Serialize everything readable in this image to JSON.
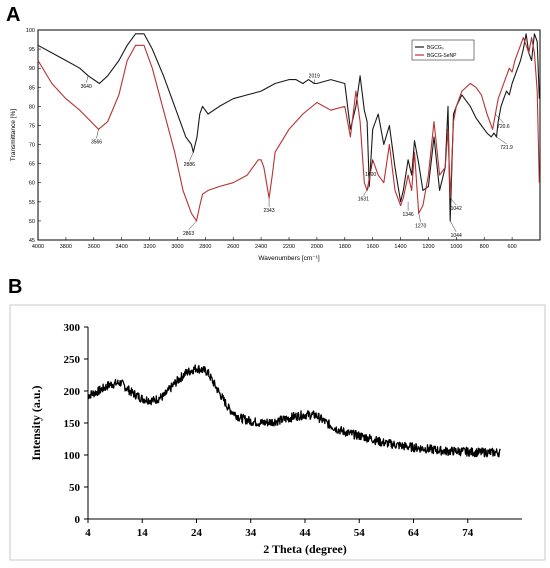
{
  "panels": {
    "a": "A",
    "b": "B"
  },
  "chart_data": [
    {
      "type": "line",
      "panel": "A",
      "title": "",
      "xlabel": "Wavenumbers [cm⁻¹]",
      "ylabel": "Transmittance [%]",
      "xlim": [
        4000,
        400
      ],
      "ylim": [
        45,
        100
      ],
      "x_ticks": [
        4000,
        3800,
        3600,
        3400,
        3200,
        3000,
        2800,
        2600,
        2400,
        2200,
        2000,
        1800,
        1600,
        1400,
        1200,
        1000,
        800,
        600
      ],
      "y_ticks": [
        45,
        50,
        55,
        60,
        65,
        70,
        75,
        80,
        85,
        90,
        95,
        100
      ],
      "legend_position": "top-right",
      "series": [
        {
          "name": "BGCG₀",
          "color": "#1a1a1a",
          "x": [
            4000,
            3900,
            3800,
            3700,
            3640,
            3560,
            3500,
            3420,
            3360,
            3300,
            3240,
            3180,
            3100,
            3020,
            2980,
            2940,
            2900,
            2886,
            2860,
            2840,
            2820,
            2780,
            2700,
            2600,
            2500,
            2400,
            2300,
            2200,
            2150,
            2100,
            2060,
            2019,
            2000,
            1900,
            1800,
            1760,
            1720,
            1690,
            1660,
            1640,
            1624,
            1600,
            1560,
            1520,
            1480,
            1440,
            1400,
            1380,
            1346,
            1320,
            1300,
            1270,
            1240,
            1200,
            1160,
            1120,
            1080,
            1060,
            1044,
            1020,
            1000,
            960,
            900,
            860,
            820,
            780,
            750,
            730,
            712,
            700,
            680,
            660,
            640,
            620,
            600,
            580,
            560,
            540,
            520,
            500,
            480,
            460,
            440,
            420,
            405
          ],
          "y": [
            96,
            94,
            92,
            90,
            88,
            86,
            88,
            92,
            96,
            99,
            99,
            95,
            88,
            80,
            76,
            72,
            70,
            68,
            72,
            78,
            80,
            78,
            80,
            82,
            83,
            84,
            86,
            87,
            87,
            86,
            87,
            86,
            86,
            87,
            86,
            74,
            80,
            88,
            79,
            76,
            59,
            74,
            78,
            70,
            75,
            64,
            55,
            58,
            66,
            62,
            71,
            65,
            58,
            59,
            72,
            58,
            64,
            80,
            50,
            78,
            80,
            83,
            80,
            77,
            75,
            73,
            72,
            73,
            72,
            76,
            80,
            82,
            84,
            83,
            86,
            88,
            90,
            92,
            95,
            99,
            94,
            92,
            99,
            97,
            82
          ]
        },
        {
          "name": "BGCG-SeNP",
          "color": "#b83232",
          "x": [
            4000,
            3900,
            3800,
            3700,
            3620,
            3566,
            3500,
            3420,
            3360,
            3300,
            3240,
            3180,
            3100,
            3020,
            2960,
            2900,
            2863,
            2840,
            2820,
            2780,
            2700,
            2600,
            2500,
            2420,
            2400,
            2380,
            2343,
            2320,
            2300,
            2200,
            2100,
            2000,
            1900,
            1800,
            1760,
            1720,
            1690,
            1660,
            1640,
            1600,
            1560,
            1520,
            1480,
            1440,
            1400,
            1380,
            1346,
            1320,
            1300,
            1270,
            1240,
            1200,
            1160,
            1120,
            1080,
            1060,
            1044,
            1020,
            1000,
            960,
            900,
            860,
            820,
            780,
            740,
            720,
            700,
            680,
            660,
            640,
            620,
            600,
            580,
            560,
            540,
            520,
            500,
            480,
            460,
            440,
            420,
            405
          ],
          "y": [
            92,
            86,
            82,
            79,
            76,
            74,
            76,
            83,
            92,
            96,
            96,
            90,
            79,
            68,
            58,
            52,
            50,
            54,
            57,
            58,
            59,
            60,
            62,
            66,
            66,
            64,
            56,
            62,
            68,
            74,
            78,
            81,
            79,
            80,
            72,
            84,
            76,
            60,
            58,
            66,
            62,
            60,
            70,
            58,
            54,
            56,
            62,
            58,
            68,
            52,
            54,
            62,
            76,
            62,
            64,
            74,
            56,
            76,
            80,
            84,
            86,
            85,
            83,
            78,
            74,
            78,
            82,
            84,
            86,
            88,
            90,
            89,
            92,
            94,
            96,
            98,
            96,
            94,
            98,
            94,
            84,
            60
          ]
        }
      ],
      "annotations": [
        {
          "label": "3640",
          "x": 3640,
          "y": 88
        },
        {
          "label": "3566",
          "x": 3566,
          "y": 74
        },
        {
          "label": "2886",
          "x": 2886,
          "y": 68
        },
        {
          "label": "2863",
          "x": 2863,
          "y": 50
        },
        {
          "label": "2343",
          "x": 2343,
          "y": 56
        },
        {
          "label": "2019",
          "x": 2019,
          "y": 86
        },
        {
          "label": "1631",
          "x": 1624,
          "y": 59
        },
        {
          "label": "1600",
          "x": 1600,
          "y": 66
        },
        {
          "label": "1346",
          "x": 1346,
          "y": 55
        },
        {
          "label": "1270",
          "x": 1270,
          "y": 52
        },
        {
          "label": "1042",
          "x": 1044,
          "y": 56
        },
        {
          "label": "1044",
          "x": 1044,
          "y": 50
        },
        {
          "label": "720.6",
          "x": 720,
          "y": 78
        },
        {
          "label": "721.9",
          "x": 712,
          "y": 72
        }
      ]
    },
    {
      "type": "line",
      "panel": "B",
      "title": "",
      "xlabel": "2 Theta (degree)",
      "ylabel": "Intensity (a.u.)",
      "xlim": [
        4,
        84
      ],
      "ylim": [
        0,
        300
      ],
      "x_ticks": [
        4,
        14,
        24,
        34,
        44,
        54,
        64,
        74
      ],
      "y_ticks": [
        0,
        50,
        100,
        150,
        200,
        250,
        300
      ],
      "series": [
        {
          "name": "",
          "color": "#000000",
          "x": [
            4,
            6,
            8,
            10,
            12,
            14,
            16,
            18,
            20,
            22,
            24,
            26,
            28,
            30,
            32,
            34,
            36,
            38,
            40,
            42,
            44,
            46,
            48,
            50,
            52,
            54,
            56,
            58,
            60,
            62,
            64,
            66,
            68,
            70,
            72,
            74,
            76,
            78,
            80
          ],
          "y": [
            193,
            200,
            210,
            213,
            198,
            188,
            185,
            192,
            212,
            228,
            236,
            230,
            200,
            172,
            158,
            153,
            150,
            152,
            155,
            160,
            163,
            162,
            150,
            140,
            134,
            130,
            126,
            120,
            117,
            114,
            112,
            110,
            108,
            106,
            106,
            105,
            104,
            104,
            104
          ]
        }
      ]
    }
  ]
}
